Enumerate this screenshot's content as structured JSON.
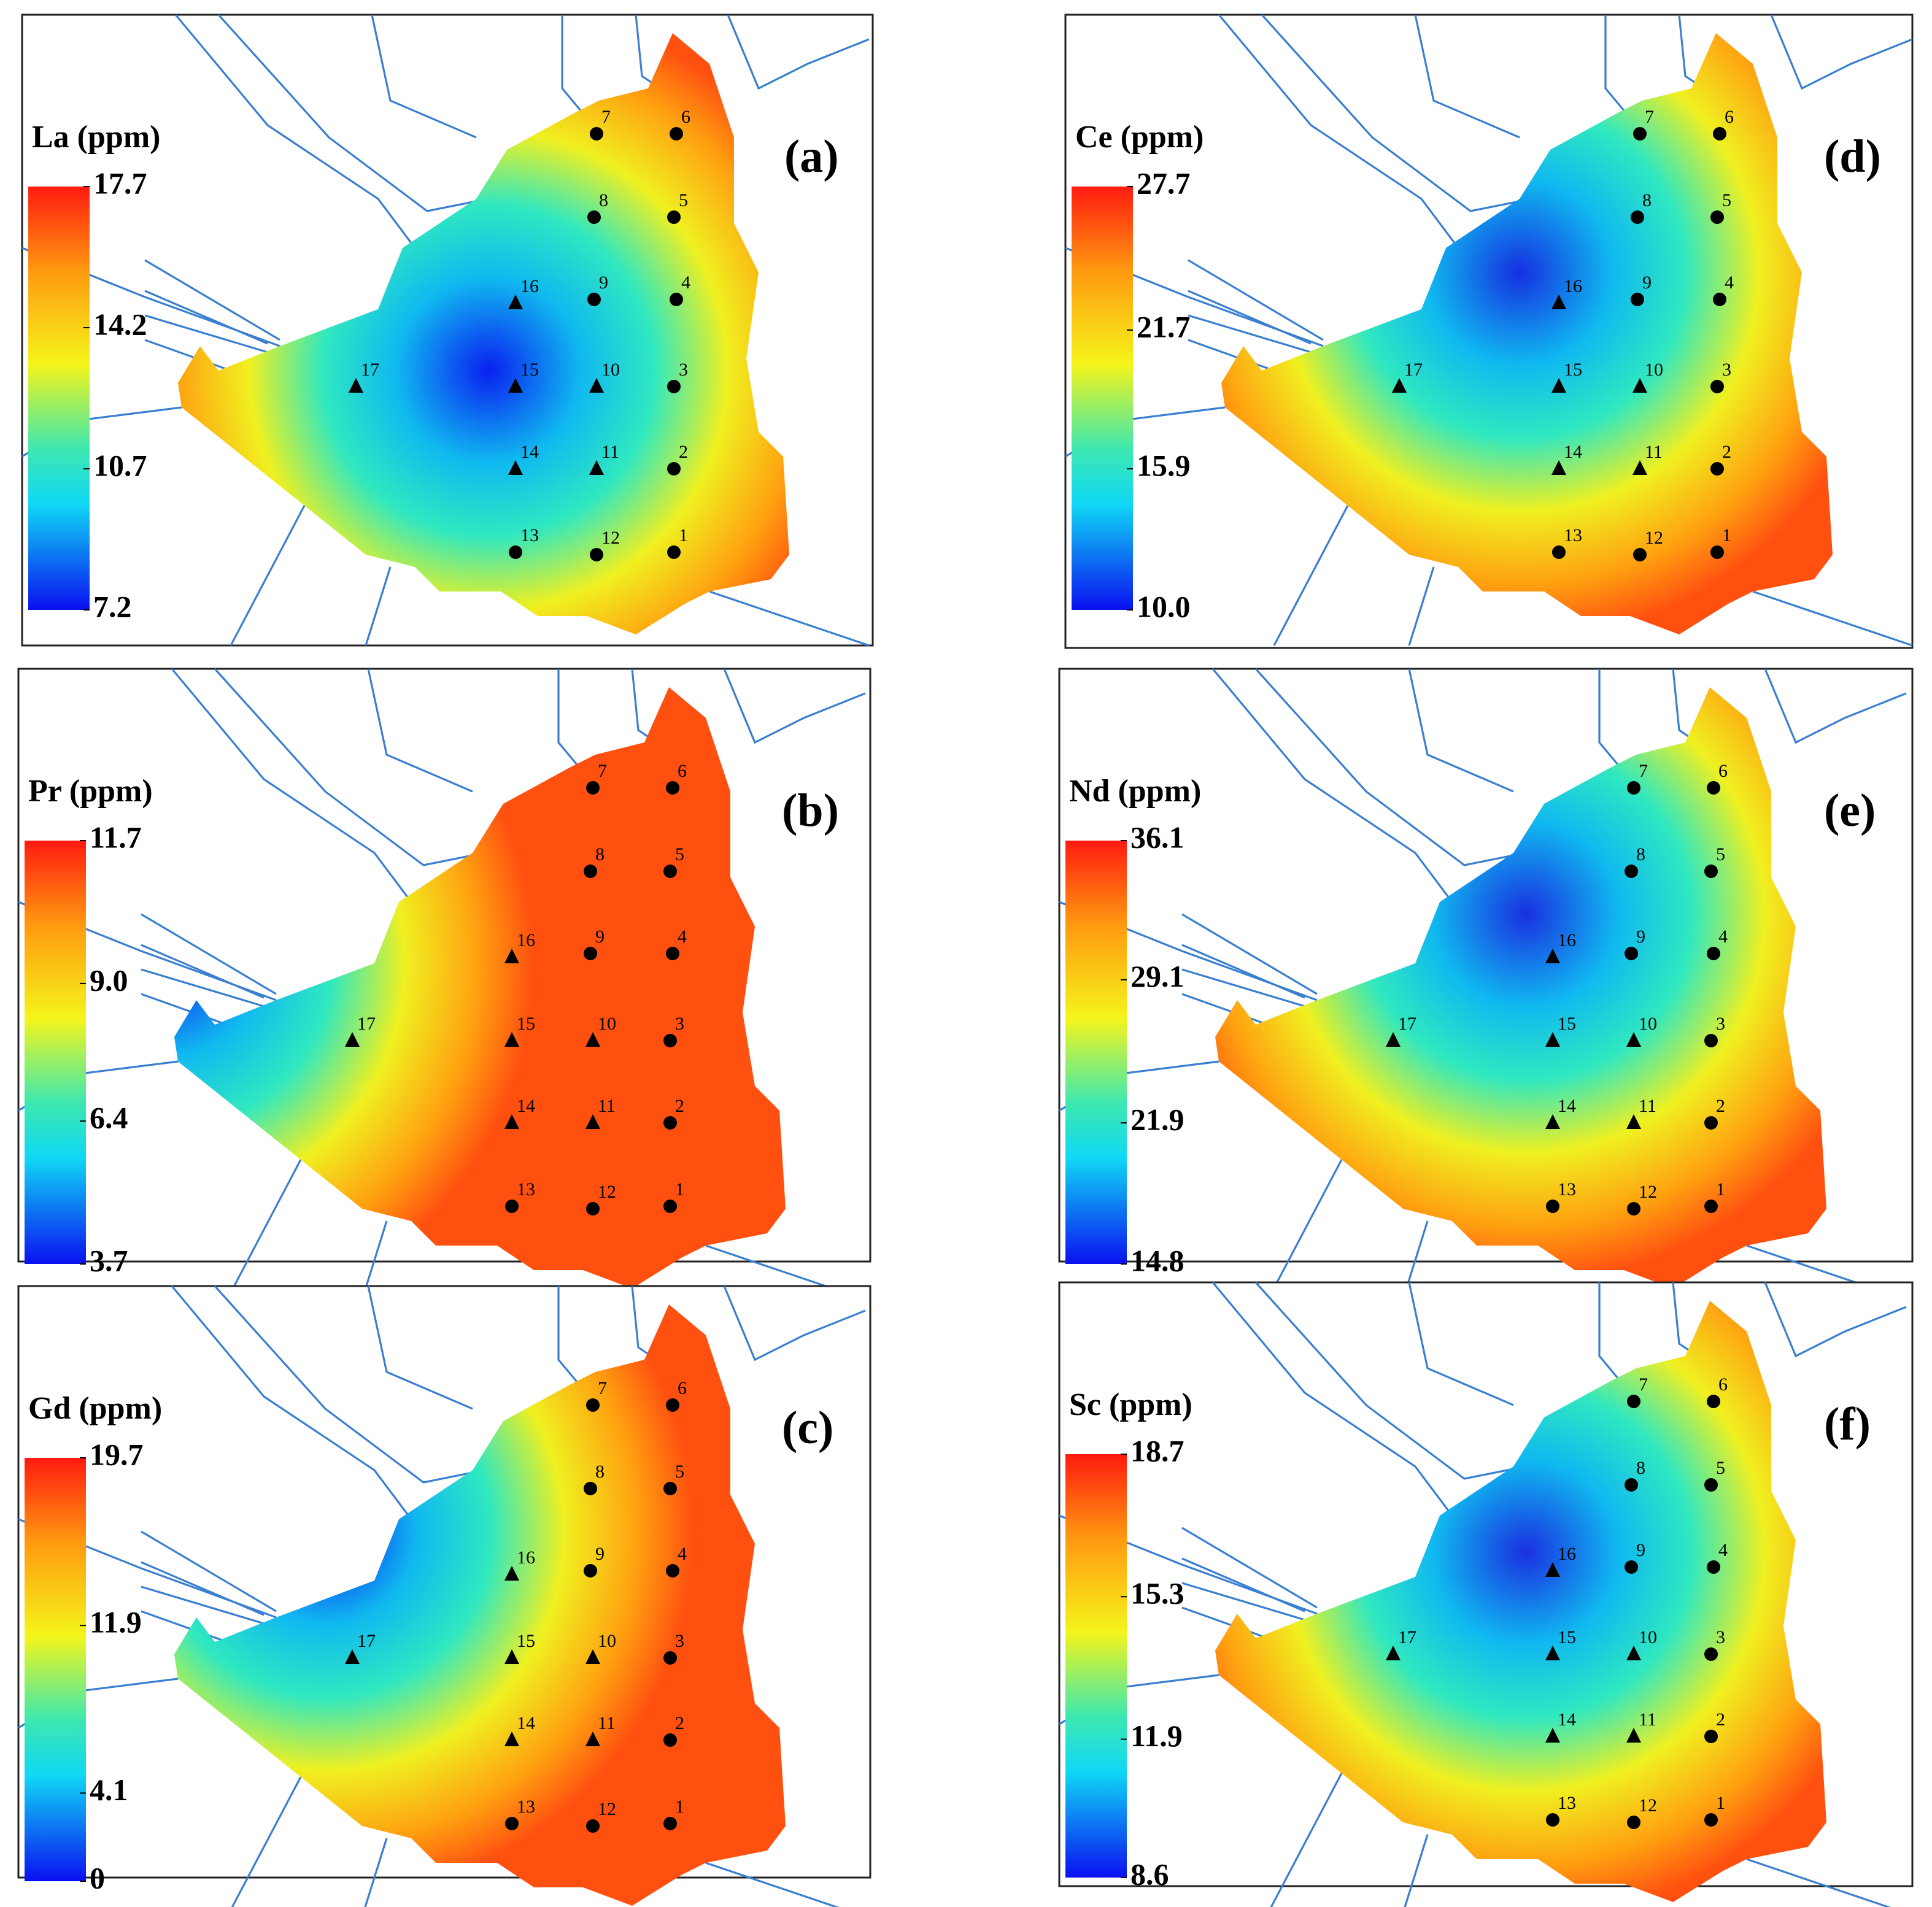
{
  "panels": [
    {
      "letter": "(a)",
      "title": "La (ppm)",
      "colorbar_ticks": [
        17.7,
        14.2,
        10.7,
        7.2
      ]
    },
    {
      "letter": "(d)",
      "title": "Ce (ppm)",
      "colorbar_ticks": [
        27.7,
        21.7,
        15.9,
        {
          "value": 10,
          "label": "10.0"
        }
      ]
    },
    {
      "letter": "(b)",
      "title": "Pr (ppm)",
      "colorbar_ticks": [
        11.7,
        {
          "value": 9,
          "label": "9.0"
        },
        6.4,
        3.7
      ]
    },
    {
      "letter": "(e)",
      "title": "Nd (ppm)",
      "colorbar_ticks": [
        36.1,
        29.1,
        21.9,
        14.8
      ]
    },
    {
      "letter": "(c)",
      "title": "Gd (ppm)",
      "colorbar_ticks": [
        19.7,
        11.9,
        4.1,
        0
      ]
    },
    {
      "letter": "(f)",
      "title": "Sc (ppm)",
      "colorbar_ticks": [
        18.7,
        15.3,
        11.9,
        8.6
      ]
    }
  ],
  "stations": [
    "1",
    "2",
    "3",
    "4",
    "5",
    "6",
    "7",
    "8",
    "9",
    "10",
    "11",
    "12",
    "13",
    "14",
    "15",
    "16",
    "17"
  ]
}
